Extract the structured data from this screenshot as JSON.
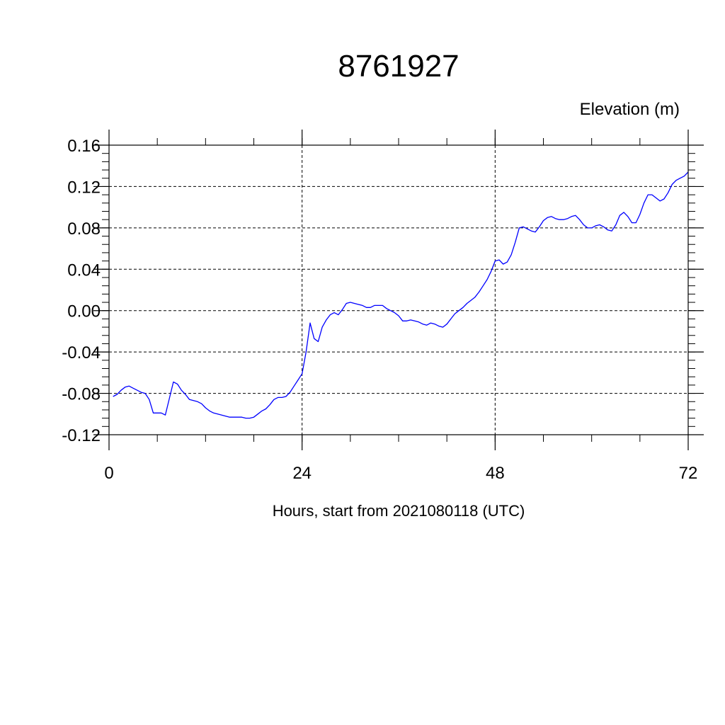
{
  "chart_data": {
    "type": "line",
    "title": "8761927",
    "unit_label": "Elevation (m)",
    "xlabel": "Hours, start from 2021080118 (UTC)",
    "ylabel": "",
    "xlim": [
      0,
      72
    ],
    "ylim": [
      -0.12,
      0.16
    ],
    "x_ticks": [
      0,
      24,
      48,
      72
    ],
    "x_tick_labels": [
      "0",
      "24",
      "48",
      "72"
    ],
    "y_ticks": [
      -0.12,
      -0.08,
      -0.04,
      0.0,
      0.04,
      0.08,
      0.12,
      0.16
    ],
    "y_tick_labels": [
      "-0.12",
      "-0.08",
      "-0.04",
      "0.00",
      "0.04",
      "0.08",
      "0.12",
      "0.16"
    ],
    "grid": true,
    "line_color": "#0000ff",
    "series": [
      {
        "x": [
          0.5,
          1,
          1.5,
          2,
          2.5,
          3,
          3.5,
          4,
          4.5,
          5,
          5.5,
          6,
          6.5,
          7,
          7.5,
          8,
          8.5,
          9,
          9.5,
          10,
          10.5,
          11,
          11.5,
          12,
          12.5,
          13,
          13.5,
          14,
          14.5,
          15,
          15.5,
          16,
          16.5,
          17,
          17.5,
          18,
          18.5,
          19,
          19.5,
          20,
          20.5,
          21,
          21.5,
          22,
          22.5,
          23,
          23.5,
          24,
          24.5,
          25,
          25.5,
          26,
          26.5,
          27,
          27.5,
          28,
          28.5,
          29,
          29.5,
          30,
          30.5,
          31,
          31.5,
          32,
          32.5,
          33,
          33.5,
          34,
          34.5,
          35,
          35.5,
          36,
          36.5,
          37,
          37.5,
          38,
          38.5,
          39,
          39.5,
          40,
          40.5,
          41,
          41.5,
          42,
          42.5,
          43,
          43.5,
          44,
          44.5,
          45,
          45.5,
          46,
          46.5,
          47,
          47.5,
          48,
          48.5,
          49,
          49.5,
          50,
          50.5,
          51,
          51.5,
          52,
          52.5,
          53,
          53.5,
          54,
          54.5,
          55,
          55.5,
          56,
          56.5,
          57,
          57.5,
          58,
          58.5,
          59,
          59.5,
          60,
          60.5,
          61,
          61.5,
          62,
          62.5,
          63,
          63.5,
          64,
          64.5,
          65,
          65.5,
          66,
          66.5,
          67,
          67.5,
          68,
          68.5,
          69,
          69.5,
          70,
          70.5,
          71,
          71.5,
          72
        ],
        "values": [
          -0.083,
          -0.081,
          -0.077,
          -0.074,
          -0.073,
          -0.075,
          -0.077,
          -0.079,
          -0.08,
          -0.086,
          -0.099,
          -0.099,
          -0.099,
          -0.101,
          -0.085,
          -0.069,
          -0.071,
          -0.077,
          -0.081,
          -0.086,
          -0.087,
          -0.088,
          -0.09,
          -0.094,
          -0.097,
          -0.099,
          -0.1,
          -0.101,
          -0.102,
          -0.103,
          -0.103,
          -0.103,
          -0.103,
          -0.104,
          -0.104,
          -0.103,
          -0.1,
          -0.097,
          -0.095,
          -0.091,
          -0.086,
          -0.084,
          -0.084,
          -0.083,
          -0.079,
          -0.073,
          -0.067,
          -0.061,
          -0.04,
          -0.012,
          -0.027,
          -0.03,
          -0.016,
          -0.009,
          -0.004,
          -0.002,
          -0.004,
          0.001,
          0.007,
          0.008,
          0.007,
          0.006,
          0.005,
          0.003,
          0.003,
          0.005,
          0.005,
          0.005,
          0.002,
          0.0,
          -0.002,
          -0.005,
          -0.01,
          -0.01,
          -0.009,
          -0.01,
          -0.011,
          -0.013,
          -0.014,
          -0.012,
          -0.013,
          -0.015,
          -0.016,
          -0.013,
          -0.008,
          -0.003,
          0.0,
          0.003,
          0.007,
          0.01,
          0.013,
          0.018,
          0.024,
          0.03,
          0.038,
          0.048,
          0.049,
          0.045,
          0.047,
          0.054,
          0.066,
          0.08,
          0.081,
          0.079,
          0.077,
          0.076,
          0.081,
          0.087,
          0.09,
          0.091,
          0.089,
          0.088,
          0.088,
          0.089,
          0.091,
          0.092,
          0.088,
          0.083,
          0.08,
          0.08,
          0.082,
          0.083,
          0.081,
          0.078,
          0.077,
          0.083,
          0.092,
          0.095,
          0.091,
          0.085,
          0.085,
          0.093,
          0.104,
          0.112,
          0.112,
          0.109,
          0.106,
          0.108,
          0.114,
          0.122,
          0.126,
          0.128,
          0.13,
          0.134
        ]
      }
    ]
  }
}
